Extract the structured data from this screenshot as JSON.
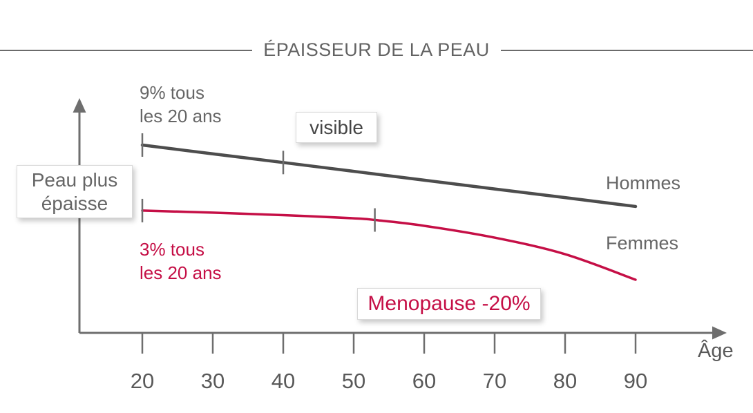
{
  "chart_data": {
    "type": "line",
    "title": "ÉPAISSEUR DE LA PEAU",
    "xlabel": "Âge",
    "ylabel": "",
    "x_tick_ages": [
      20,
      30,
      40,
      50,
      60,
      70,
      80,
      90
    ],
    "x_tick_labels": [
      "20",
      "30",
      "40",
      "50",
      "60",
      "70",
      "80",
      "90"
    ],
    "xlim": [
      11,
      103
    ],
    "ylim": [
      0,
      110
    ],
    "value_scale_note": "relative thickness, 100 = Hommes at age 20",
    "series": [
      {
        "name": "Hommes",
        "color": "#4d4d4d",
        "x": [
          20,
          30,
          40,
          50,
          60,
          70,
          80,
          90
        ],
        "values": [
          100,
          95.3,
          90.7,
          86.0,
          81.3,
          76.6,
          72.0,
          67.3
        ],
        "tick_marks_at_ages": [
          20,
          40
        ],
        "rate_label": "9% tous les 20 ans"
      },
      {
        "name": "Femmes",
        "color": "#c50f46",
        "x": [
          20,
          30,
          40,
          50,
          53,
          60,
          70,
          80,
          90
        ],
        "values": [
          65.1,
          64.0,
          62.7,
          61.0,
          60.1,
          57.0,
          50.7,
          41.9,
          28.3
        ],
        "tick_marks_at_ages": [
          20,
          53
        ],
        "rate_label": "3% tous les 20 ans"
      }
    ],
    "annotations": {
      "men_rate": {
        "line1": "9% tous",
        "line2": "les 20 ans",
        "color": "#666666"
      },
      "women_rate": {
        "line1": "3% tous",
        "line2": "les 20 ans",
        "color": "#c50f46"
      },
      "visible": {
        "text": "visible"
      },
      "thicker_skin": {
        "line1": "Peau plus",
        "line2": "épaisse"
      },
      "menopause": {
        "text": "Menopause -20%",
        "color": "#c50f46"
      }
    },
    "axis_color": "#6e6e6e",
    "tick_label_color": "#595959",
    "legend_position": "right-of-lines"
  }
}
